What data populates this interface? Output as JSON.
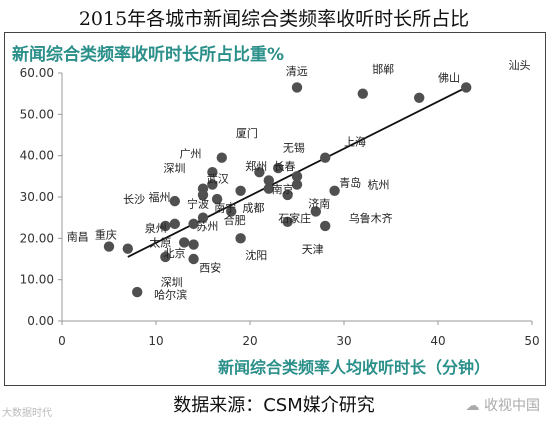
{
  "title": "2015年各城市新闻综合类频率收听时长所占比",
  "source": "数据来源：CSM媒介研究",
  "watermark_left": "大数据时代",
  "watermark_right": "收视中国",
  "chart_data": {
    "type": "scatter",
    "title": "新闻综合类频率收听时长所占比重%",
    "xlabel": "新闻综合类频率人均收听时长（分钟）",
    "ylabel": "",
    "xlim": [
      0,
      50
    ],
    "ylim": [
      0,
      60
    ],
    "xticks": [
      "0",
      "10",
      "20",
      "30",
      "40",
      "50"
    ],
    "yticks": [
      "0.00",
      "10.00",
      "20.00",
      "30.00",
      "40.00",
      "50.00",
      "60.00"
    ],
    "grid": false,
    "trendline": {
      "x1": 7,
      "y1": 15.5,
      "x2": 43,
      "y2": 56.5
    },
    "points": [
      {
        "x": 5,
        "y": 18
      },
      {
        "x": 7,
        "y": 17.5
      },
      {
        "x": 8,
        "y": 7
      },
      {
        "x": 11,
        "y": 23
      },
      {
        "x": 11,
        "y": 15.5
      },
      {
        "x": 12,
        "y": 29
      },
      {
        "x": 12,
        "y": 23.5
      },
      {
        "x": 13,
        "y": 19
      },
      {
        "x": 14,
        "y": 18.5
      },
      {
        "x": 14,
        "y": 23.5
      },
      {
        "x": 14,
        "y": 15
      },
      {
        "x": 15,
        "y": 25
      },
      {
        "x": 15,
        "y": 32
      },
      {
        "x": 15,
        "y": 30.5
      },
      {
        "x": 16,
        "y": 36
      },
      {
        "x": 16,
        "y": 33
      },
      {
        "x": 16.5,
        "y": 29.5
      },
      {
        "x": 17,
        "y": 39.5
      },
      {
        "x": 18,
        "y": 26.5
      },
      {
        "x": 19,
        "y": 31.5
      },
      {
        "x": 19,
        "y": 20
      },
      {
        "x": 21,
        "y": 36
      },
      {
        "x": 22,
        "y": 34
      },
      {
        "x": 22,
        "y": 32
      },
      {
        "x": 23,
        "y": 37
      },
      {
        "x": 24,
        "y": 24
      },
      {
        "x": 24,
        "y": 30.5
      },
      {
        "x": 25,
        "y": 35
      },
      {
        "x": 25,
        "y": 33
      },
      {
        "x": 25,
        "y": 56.5
      },
      {
        "x": 27,
        "y": 26.5
      },
      {
        "x": 28,
        "y": 39.5
      },
      {
        "x": 28,
        "y": 23
      },
      {
        "x": 29,
        "y": 31.5
      },
      {
        "x": 32,
        "y": 55
      },
      {
        "x": 38,
        "y": 54
      },
      {
        "x": 43,
        "y": 56.5
      }
    ],
    "labels": [
      {
        "text": "清远",
        "x": 23.8,
        "y": 59.5
      },
      {
        "text": "邯郸",
        "x": 33,
        "y": 60
      },
      {
        "text": "佛山",
        "x": 40,
        "y": 58
      },
      {
        "text": "汕头",
        "x": 47.5,
        "y": 61
      },
      {
        "text": "厦门",
        "x": 18.5,
        "y": 44.5
      },
      {
        "text": "广州",
        "x": 12.5,
        "y": 39.5
      },
      {
        "text": "无锡",
        "x": 23.5,
        "y": 41
      },
      {
        "text": "上海",
        "x": 30,
        "y": 42.5
      },
      {
        "text": "深圳",
        "x": 10.8,
        "y": 36
      },
      {
        "text": "武汉",
        "x": 15.4,
        "y": 33.5
      },
      {
        "text": "郑州",
        "x": 19.5,
        "y": 36.5
      },
      {
        "text": "长春",
        "x": 22.5,
        "y": 36.5
      },
      {
        "text": "青岛",
        "x": 29.5,
        "y": 32.5
      },
      {
        "text": "杭州",
        "x": 32.5,
        "y": 32
      },
      {
        "text": "福州",
        "x": 9.2,
        "y": 29
      },
      {
        "text": "宁波",
        "x": 13.3,
        "y": 27.5
      },
      {
        "text": "南京",
        "x": 22.3,
        "y": 31
      },
      {
        "text": "长沙",
        "x": 6.5,
        "y": 28.5
      },
      {
        "text": "济南",
        "x": 26.2,
        "y": 27.5
      },
      {
        "text": "南宁",
        "x": 16.2,
        "y": 26.5
      },
      {
        "text": "成都",
        "x": 19.2,
        "y": 26.5
      },
      {
        "text": "苏州",
        "x": 14.3,
        "y": 22
      },
      {
        "text": "合肥",
        "x": 17.2,
        "y": 23.5
      },
      {
        "text": "泉州",
        "x": 8.8,
        "y": 21.5
      },
      {
        "text": "石家庄",
        "x": 23,
        "y": 24
      },
      {
        "text": "乌鲁木齐",
        "x": 30.5,
        "y": 24
      },
      {
        "text": "南昌",
        "x": 0.5,
        "y": 19.5
      },
      {
        "text": "重庆",
        "x": 3.5,
        "y": 20
      },
      {
        "text": "太原",
        "x": 9.3,
        "y": 18
      },
      {
        "text": "北京",
        "x": 10.8,
        "y": 15.5
      },
      {
        "text": "天津",
        "x": 25.5,
        "y": 16.5
      },
      {
        "text": "沈阳",
        "x": 19.5,
        "y": 15
      },
      {
        "text": "西安",
        "x": 14.6,
        "y": 12
      },
      {
        "text": "深圳",
        "x": 10.5,
        "y": 8.5
      },
      {
        "text": "哈尔滨",
        "x": 9.8,
        "y": 5.5
      }
    ]
  },
  "colors": {
    "point": "#505050",
    "accent": "#2b8f8a",
    "line": "#111111",
    "axis": "#999999"
  }
}
